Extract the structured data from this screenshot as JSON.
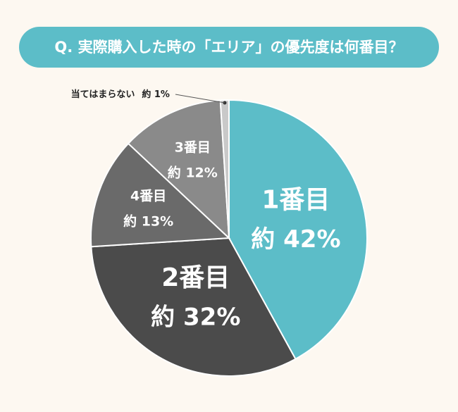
{
  "chart_data": {
    "type": "pie",
    "title": "Q. 実際購入した時の「エリア」の優先度は何番目？",
    "categories": [
      "1番目",
      "2番目",
      "4番目",
      "3番目",
      "当てはまらない"
    ],
    "values": [
      42,
      32,
      13,
      12,
      1
    ],
    "value_labels": [
      "約 42%",
      "約 32%",
      "約 13%",
      "約 12%",
      "約 1%"
    ],
    "colors": [
      "#5cbdc8",
      "#4b4b4b",
      "#6a6a6a",
      "#8a8a8a",
      "#c9c9c9"
    ],
    "start_angle": 0,
    "direction": "clockwise"
  }
}
